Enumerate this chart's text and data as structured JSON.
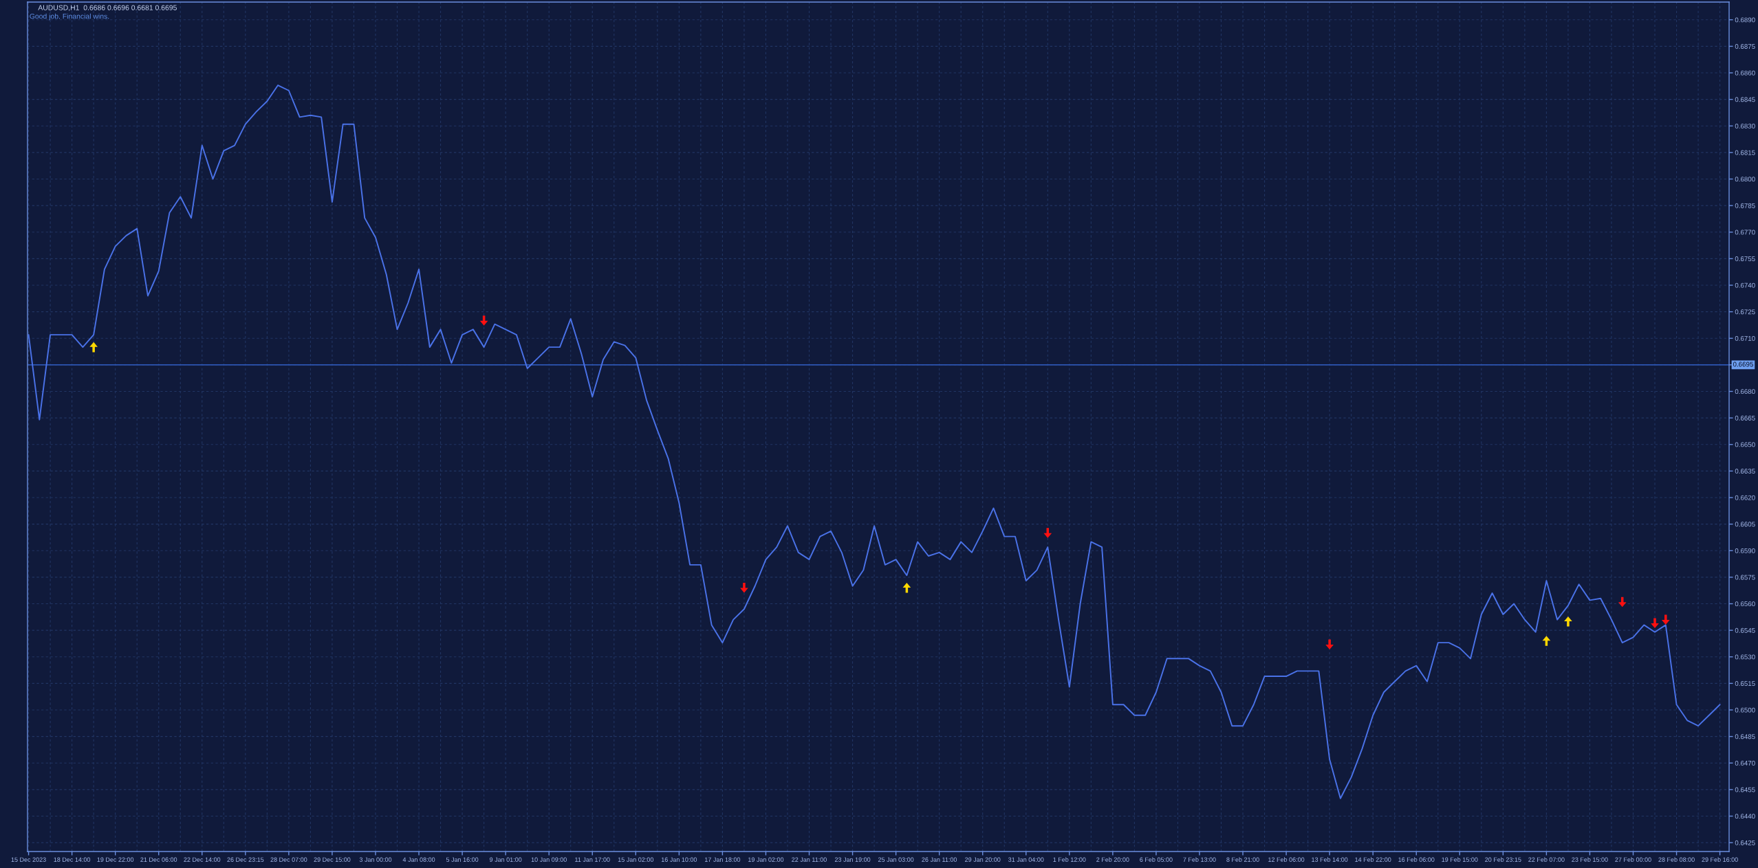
{
  "chart_data": {
    "type": "line",
    "title": "AUDUSD,H1  0.6686 0.6696 0.6681 0.6695",
    "subtitle": "Good job. Financial wins.",
    "categories": [
      "15 Dec 2023",
      null,
      null,
      null,
      "18 Dec 14:00",
      null,
      null,
      null,
      "19 Dec 22:00",
      null,
      null,
      null,
      "21 Dec 06:00",
      null,
      null,
      null,
      "22 Dec 14:00",
      null,
      null,
      null,
      "26 Dec 23:15",
      null,
      null,
      null,
      "28 Dec 07:00",
      null,
      null,
      null,
      "29 Dec 15:00",
      null,
      null,
      null,
      "3 Jan 00:00",
      null,
      null,
      null,
      "4 Jan 08:00",
      null,
      null,
      null,
      "5 Jan 16:00",
      null,
      null,
      null,
      "9 Jan 01:00",
      null,
      null,
      null,
      "10 Jan 09:00",
      null,
      null,
      null,
      "11 Jan 17:00",
      null,
      null,
      null,
      "15 Jan 02:00",
      null,
      null,
      null,
      "16 Jan 10:00",
      null,
      null,
      null,
      "17 Jan 18:00",
      null,
      null,
      null,
      "19 Jan 02:00",
      null,
      null,
      null,
      "22 Jan 11:00",
      null,
      null,
      null,
      "23 Jan 19:00",
      null,
      null,
      null,
      "25 Jan 03:00",
      null,
      null,
      null,
      "26 Jan 11:00",
      null,
      null,
      null,
      "29 Jan 20:00",
      null,
      null,
      null,
      "31 Jan 04:00",
      null,
      null,
      null,
      "1 Feb 12:00",
      null,
      null,
      null,
      "2 Feb 20:00",
      null,
      null,
      null,
      "6 Feb 05:00",
      null,
      null,
      null,
      "7 Feb 13:00",
      null,
      null,
      null,
      "8 Feb 21:00",
      null,
      null,
      null,
      "12 Feb 06:00",
      null,
      null,
      null,
      "13 Feb 14:00",
      null,
      null,
      null,
      "14 Feb 22:00",
      null,
      null,
      null,
      "16 Feb 06:00",
      null,
      null,
      null,
      "19 Feb 15:00",
      null,
      null,
      null,
      "20 Feb 23:15",
      null,
      null,
      null,
      "22 Feb 07:00",
      null,
      null,
      null,
      "23 Feb 15:00",
      null,
      null,
      null,
      "27 Feb 00:00",
      null,
      null,
      null,
      "28 Feb 08:00",
      null,
      null,
      null,
      "29 Feb 16:00"
    ],
    "ylim": [
      0.642,
      0.69
    ],
    "yticks": [
      0.6425,
      {
        "value": 0.644,
        "label": "0.6440"
      },
      0.6455,
      {
        "value": 0.647,
        "label": "0.6470"
      },
      0.6485,
      {
        "value": 0.65,
        "label": "0.6500"
      },
      0.6515,
      {
        "value": 0.653,
        "label": "0.6530"
      },
      0.6545,
      {
        "value": 0.656,
        "label": "0.6560"
      },
      0.6575,
      {
        "value": 0.659,
        "label": "0.6590"
      },
      0.6605,
      {
        "value": 0.662,
        "label": "0.6620"
      },
      0.6635,
      {
        "value": 0.665,
        "label": "0.6650"
      },
      0.6665,
      {
        "value": 0.668,
        "label": "0.6680"
      },
      {
        "value": 0.6695,
        "label": null
      },
      {
        "value": 0.671,
        "label": "0.6710"
      },
      0.6725,
      {
        "value": 0.674,
        "label": "0.6740"
      },
      0.6755,
      {
        "value": 0.677,
        "label": "0.6770"
      },
      0.6785,
      {
        "value": 0.68,
        "label": "0.6800"
      },
      0.6815,
      {
        "value": 0.683,
        "label": "0.6830"
      },
      0.6845,
      {
        "value": 0.686,
        "label": "0.6860"
      },
      0.6875,
      {
        "value": 0.689,
        "label": "0.6890"
      }
    ],
    "grid": true,
    "ref_lines": [
      {
        "axis": "y",
        "value": 0.6695,
        "label": "0.6695",
        "color": "#2c55b2"
      }
    ],
    "series": [
      {
        "color": "#4a72e8",
        "values": [
          0.6712,
          0.6664,
          0.6712,
          0.6712,
          0.6712,
          0.6705,
          0.6712,
          0.6749,
          0.6762,
          0.6768,
          0.6772,
          0.6734,
          0.6748,
          0.6781,
          0.679,
          0.6778,
          0.6819,
          0.68,
          0.6816,
          0.6819,
          0.6831,
          0.6838,
          0.6844,
          0.6853,
          0.685,
          0.6835,
          0.6836,
          0.6835,
          0.6787,
          0.6831,
          0.6831,
          0.6778,
          0.6767,
          0.6746,
          0.6715,
          0.673,
          0.6749,
          0.6705,
          0.6715,
          0.6696,
          0.6712,
          0.6715,
          0.6705,
          0.6718,
          0.6715,
          0.6712,
          0.6693,
          0.6699,
          0.6705,
          0.6705,
          0.6721,
          0.6701,
          0.6677,
          0.6698,
          0.6708,
          0.6706,
          0.6699,
          0.6675,
          0.6658,
          0.6642,
          0.6617,
          0.6582,
          0.6582,
          0.6548,
          0.6538,
          0.6551,
          0.6557,
          0.657,
          0.6585,
          0.6592,
          0.6604,
          0.6589,
          0.6585,
          0.6598,
          0.6601,
          0.6589,
          0.657,
          0.6579,
          0.6604,
          0.6582,
          0.6585,
          0.6576,
          0.6595,
          0.6587,
          0.6589,
          0.6585,
          0.6595,
          0.6589,
          0.6601,
          0.6614,
          0.6598,
          0.6598,
          0.6573,
          0.6579,
          0.6592,
          0.6551,
          0.6513,
          0.656,
          0.6595,
          0.6592,
          0.6503,
          0.6503,
          0.6497,
          0.6497,
          0.651,
          0.6529,
          0.6529,
          0.6529,
          0.6525,
          0.6522,
          0.651,
          0.6491,
          0.6491,
          0.6503,
          0.6519,
          0.6519,
          0.6519,
          0.6522,
          0.6522,
          0.6522,
          0.6472,
          0.645,
          0.6462,
          0.6478,
          0.6497,
          0.651,
          0.6516,
          0.6522,
          0.6525,
          0.6516,
          0.6538,
          0.6538,
          0.6535,
          0.6529,
          0.6554,
          0.6566,
          0.6554,
          0.656,
          0.6551,
          0.6544,
          0.6573,
          0.6551,
          0.6559,
          0.6571,
          0.6562,
          0.6563,
          0.6551,
          0.6538,
          0.6541,
          0.6548,
          0.6544,
          0.6548,
          0.6503,
          0.6494,
          0.6491,
          0.6497,
          0.6503
        ]
      },
      {
        "type": "scatter",
        "color": "#ffd800",
        "values": [
          null,
          null,
          null,
          null,
          null,
          null,
          0.6705,
          null,
          null,
          null,
          null,
          null,
          null,
          null,
          null,
          null,
          null,
          null,
          null,
          null,
          null,
          null,
          null,
          null,
          null,
          null,
          null,
          null,
          null,
          null,
          null,
          null,
          null,
          null,
          null,
          null,
          null,
          null,
          null,
          null,
          null,
          null,
          null,
          null,
          null,
          null,
          null,
          null,
          null,
          null,
          null,
          null,
          null,
          null,
          null,
          null,
          null,
          null,
          null,
          null,
          null,
          null,
          null,
          null,
          null,
          null,
          null,
          null,
          null,
          null,
          null,
          null,
          null,
          null,
          null,
          null,
          null,
          null,
          null,
          null,
          null,
          0.6569,
          null,
          null,
          null,
          null,
          null,
          null,
          null,
          null,
          null,
          null,
          null,
          null,
          null,
          null,
          null,
          null,
          null,
          null,
          null,
          null,
          null,
          null,
          null,
          null,
          null,
          null,
          null,
          null,
          null,
          null,
          null,
          null,
          null,
          null,
          null,
          null,
          null,
          null,
          null,
          null,
          null,
          null,
          null,
          null,
          null,
          null,
          null,
          null,
          null,
          null,
          null,
          null,
          null,
          null,
          null,
          null,
          null,
          null,
          0.6539,
          null,
          0.655,
          null,
          null,
          null,
          null,
          null,
          null,
          null,
          null,
          null,
          null,
          null,
          null,
          null,
          null
        ]
      },
      {
        "type": "scatter",
        "color": "#ff1010",
        "values": [
          null,
          null,
          null,
          null,
          null,
          null,
          null,
          null,
          null,
          null,
          null,
          null,
          null,
          null,
          null,
          null,
          null,
          null,
          null,
          null,
          null,
          null,
          null,
          null,
          null,
          null,
          null,
          null,
          null,
          null,
          null,
          null,
          null,
          null,
          null,
          null,
          null,
          null,
          null,
          null,
          null,
          null,
          0.672,
          null,
          null,
          null,
          null,
          null,
          null,
          null,
          null,
          null,
          null,
          null,
          null,
          null,
          null,
          null,
          null,
          null,
          null,
          null,
          null,
          null,
          null,
          null,
          0.6569,
          null,
          null,
          null,
          null,
          null,
          null,
          null,
          null,
          null,
          null,
          null,
          null,
          null,
          null,
          null,
          null,
          null,
          null,
          null,
          null,
          null,
          null,
          null,
          null,
          null,
          null,
          null,
          0.66,
          null,
          null,
          null,
          null,
          null,
          null,
          null,
          null,
          null,
          null,
          null,
          null,
          null,
          null,
          null,
          null,
          null,
          null,
          null,
          null,
          null,
          null,
          null,
          null,
          null,
          0.6537,
          null,
          null,
          null,
          null,
          null,
          null,
          null,
          null,
          null,
          null,
          null,
          null,
          null,
          null,
          null,
          null,
          null,
          null,
          null,
          null,
          null,
          null,
          null,
          null,
          null,
          null,
          0.6561,
          null,
          null,
          0.6549,
          0.6551,
          null,
          null,
          null,
          null,
          null
        ]
      }
    ]
  }
}
